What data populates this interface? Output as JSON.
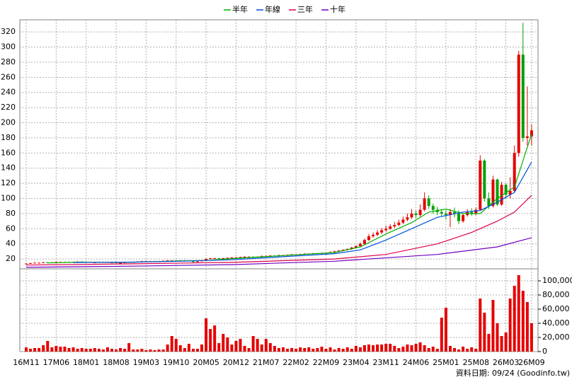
{
  "chart_data": {
    "type": "candlestick",
    "footer": "資料日期: 09/24 (Goodinfo.tw)",
    "up_color": "#e60000",
    "down_color": "#00a000",
    "grid": true,
    "categories": [
      "16M11",
      null,
      null,
      null,
      null,
      null,
      null,
      "17M06",
      null,
      null,
      null,
      null,
      null,
      null,
      "18M01",
      null,
      null,
      null,
      null,
      null,
      null,
      "18M08",
      null,
      null,
      null,
      null,
      null,
      null,
      "19M03",
      null,
      null,
      null,
      null,
      null,
      null,
      "19M10",
      null,
      null,
      null,
      null,
      null,
      null,
      "20M05",
      null,
      null,
      null,
      null,
      null,
      null,
      "20M12",
      null,
      null,
      null,
      null,
      null,
      null,
      "21M07",
      null,
      null,
      null,
      null,
      null,
      null,
      "22M02",
      null,
      null,
      null,
      null,
      null,
      null,
      "22M09",
      null,
      null,
      null,
      null,
      null,
      null,
      "23M04",
      null,
      null,
      null,
      null,
      null,
      null,
      "23M11",
      null,
      null,
      null,
      null,
      null,
      null,
      "24M06",
      null,
      null,
      null,
      null,
      null,
      null,
      "25M01",
      null,
      null,
      null,
      null,
      null,
      null,
      "25M08",
      null,
      null,
      null,
      null,
      null,
      null,
      "26M03",
      null,
      null,
      null,
      null,
      null,
      "26M09"
    ],
    "open": [
      14,
      14,
      14.5,
      15,
      15,
      15.5,
      15,
      15.5,
      16,
      16,
      15.5,
      16,
      16,
      16.5,
      16,
      16,
      15.5,
      15.5,
      16,
      16,
      15.5,
      15.5,
      15,
      15,
      15.5,
      16,
      16,
      16.5,
      17,
      17,
      17,
      16.5,
      17,
      17.5,
      18,
      18,
      17.5,
      18,
      18,
      17.5,
      16,
      17,
      18,
      20,
      21,
      21,
      20.5,
      21,
      21.5,
      22,
      22,
      22.5,
      23,
      23,
      22.5,
      23,
      24,
      24,
      24.5,
      24,
      25,
      25,
      25.5,
      26,
      26,
      26.5,
      27,
      27,
      27.5,
      27,
      28,
      28,
      29,
      30,
      31,
      32,
      33,
      35,
      37,
      40,
      45,
      50,
      52,
      55,
      58,
      60,
      63,
      65,
      68,
      72,
      75,
      80,
      78,
      85,
      100,
      90,
      85,
      82,
      80,
      78,
      82,
      80,
      70,
      78,
      82,
      80,
      85,
      150,
      100,
      90,
      125,
      92,
      118,
      105,
      110,
      160,
      290,
      180,
      182
    ],
    "high": [
      14.5,
      15,
      15.5,
      15.5,
      16,
      16,
      16,
      16.5,
      16.5,
      16.5,
      16.5,
      16.5,
      17,
      17,
      16.5,
      16.5,
      16,
      16.5,
      16.5,
      16.5,
      16,
      16,
      15.5,
      16,
      16.5,
      16.5,
      17,
      17.5,
      17.5,
      17.5,
      17.5,
      17.5,
      18,
      18.5,
      18.5,
      18.5,
      18.5,
      18.5,
      18.5,
      18,
      17.5,
      18.5,
      20.5,
      21.5,
      21.5,
      21.5,
      21.5,
      22,
      22.5,
      22.5,
      23,
      23.5,
      23.5,
      23.5,
      23.5,
      24.5,
      24.5,
      25,
      25,
      25.5,
      25.5,
      26,
      26.5,
      26.5,
      27,
      27.5,
      27.5,
      28,
      28,
      28.5,
      28.5,
      30,
      31,
      32,
      33,
      34,
      36,
      38,
      42,
      47,
      53,
      55,
      58,
      61,
      64,
      66,
      69,
      72,
      76,
      80,
      86,
      84,
      92,
      108,
      104,
      93,
      89,
      86,
      84,
      86,
      88,
      84,
      80,
      86,
      87,
      88,
      157,
      152,
      108,
      130,
      126,
      122,
      120,
      128,
      170,
      295,
      332,
      248,
      198
    ],
    "low": [
      13.5,
      13.5,
      14,
      14.5,
      14.5,
      14.5,
      14.5,
      15,
      15.5,
      15,
      15,
      15.5,
      15.5,
      15.5,
      15.5,
      15,
      15,
      15,
      15.5,
      15,
      15,
      14.5,
      14.5,
      14.5,
      15,
      15.5,
      15.5,
      16,
      16.5,
      16.5,
      16,
      16,
      16.5,
      17,
      17.5,
      17,
      17,
      17.5,
      17,
      15.5,
      15.5,
      16.5,
      17.5,
      19.5,
      20.5,
      20,
      20,
      20.5,
      21,
      21.5,
      21.5,
      22,
      22.5,
      22,
      22,
      22.5,
      23.5,
      23.5,
      23.5,
      23.5,
      24.5,
      24.5,
      25,
      25.5,
      25.5,
      26,
      26.5,
      26.5,
      26.5,
      26.5,
      27.5,
      27.5,
      28.5,
      29,
      30,
      31,
      32,
      34,
      36,
      39,
      44,
      48,
      50,
      53,
      56,
      58,
      61,
      63,
      66,
      70,
      73,
      74,
      76,
      83,
      86,
      80,
      78,
      76,
      72,
      62,
      75,
      66,
      68,
      76,
      77,
      78,
      84,
      96,
      86,
      88,
      90,
      90,
      100,
      100,
      108,
      155,
      175,
      170,
      170
    ],
    "close": [
      14,
      14.5,
      15,
      15,
      15.5,
      15,
      15.5,
      16,
      16,
      15.5,
      16,
      16,
      16.5,
      16,
      16,
      15.5,
      15.5,
      16,
      16,
      15.5,
      15.5,
      15,
      15,
      15.5,
      16,
      16,
      16.5,
      17,
      17,
      17,
      16.5,
      17,
      17.5,
      18,
      18,
      17.5,
      18,
      18,
      17.5,
      16,
      17,
      18,
      20,
      21,
      21,
      20.5,
      21,
      21.5,
      22,
      22,
      22.5,
      23,
      23,
      22.5,
      23,
      24,
      24,
      24.5,
      24,
      25,
      25,
      25.5,
      26,
      26,
      26.5,
      27,
      27,
      27.5,
      27,
      28,
      28,
      29,
      30,
      31,
      32,
      33,
      35,
      37,
      40,
      45,
      50,
      52,
      55,
      58,
      60,
      63,
      65,
      68,
      72,
      75,
      80,
      78,
      85,
      100,
      90,
      85,
      82,
      80,
      78,
      82,
      80,
      70,
      78,
      82,
      80,
      85,
      150,
      100,
      90,
      125,
      92,
      118,
      105,
      110,
      160,
      290,
      180,
      182,
      190
    ],
    "ylim": [
      7,
      336
    ],
    "yticks": [
      20,
      40,
      60,
      80,
      100,
      120,
      140,
      160,
      180,
      200,
      220,
      240,
      260,
      280,
      300,
      320
    ],
    "series": [
      {
        "name": "半年",
        "color": "#00b000",
        "x": [
          5,
          12,
          24,
          36,
          42,
          48,
          60,
          72,
          78,
          84,
          90,
          94,
          98,
          102,
          106,
          110,
          114,
          116,
          118
        ],
        "values": [
          14.8,
          15.8,
          15.5,
          17.5,
          18,
          20.5,
          24.5,
          28.5,
          36,
          53,
          68,
          82,
          86,
          80,
          80,
          100,
          115,
          150,
          185
        ]
      },
      {
        "name": "年線",
        "color": "#0050e0",
        "x": [
          11,
          24,
          36,
          48,
          60,
          72,
          78,
          84,
          90,
          96,
          102,
          106,
          110,
          114,
          118
        ],
        "values": [
          15.3,
          15.8,
          17,
          19,
          23,
          27,
          32,
          45,
          60,
          75,
          82,
          84,
          95,
          108,
          148
        ]
      },
      {
        "name": "三年",
        "color": "#e0004a",
        "x": [
          0,
          24,
          48,
          72,
          84,
          96,
          104,
          110,
          114,
          118
        ],
        "values": [
          12,
          13.5,
          15.5,
          20,
          26,
          40,
          55,
          70,
          82,
          104
        ]
      },
      {
        "name": "十年",
        "color": "#7000c0",
        "x": [
          0,
          24,
          48,
          72,
          96,
          110,
          118
        ],
        "values": [
          9,
          10.5,
          12.5,
          17,
          26,
          36,
          48
        ]
      }
    ],
    "volume": {
      "color": "#e60000",
      "ylim": [
        0,
        117000
      ],
      "yticks": [
        0,
        {
          "value": 20000,
          "label": "20,000"
        },
        {
          "value": 40000,
          "label": "40,000"
        },
        {
          "value": 60000,
          "label": "60,000"
        },
        {
          "value": 80000,
          "label": "80,000"
        },
        {
          "value": 100000,
          "label": "100,000"
        }
      ],
      "values": [
        6000,
        4000,
        5000,
        5000,
        9000,
        15000,
        6000,
        8000,
        7000,
        7000,
        5000,
        6000,
        4000,
        5000,
        4000,
        4000,
        5000,
        4000,
        3000,
        6000,
        4000,
        3000,
        5000,
        4000,
        12000,
        3000,
        3000,
        4000,
        2000,
        3000,
        2000,
        3000,
        3000,
        10000,
        22000,
        18000,
        9000,
        5000,
        11000,
        4000,
        4000,
        10000,
        47000,
        32000,
        37000,
        12000,
        25000,
        20000,
        10000,
        15000,
        18000,
        8000,
        5000,
        22000,
        18000,
        10000,
        18000,
        12000,
        8000,
        5000,
        6000,
        4000,
        5000,
        4000,
        6000,
        5000,
        6000,
        4000,
        5000,
        7000,
        4000,
        6000,
        3000,
        5000,
        4000,
        6000,
        4000,
        8000,
        6000,
        9000,
        10000,
        9000,
        10000,
        10000,
        11000,
        11000,
        8000,
        5000,
        7000,
        10000,
        9000,
        11000,
        13000,
        9000,
        5000,
        7000,
        4000,
        48000,
        62000,
        8000,
        5000,
        3000,
        7000,
        4000,
        6000,
        4000,
        75000,
        55000,
        25000,
        73000,
        40000,
        22000,
        27000,
        75000,
        93000,
        108000,
        86000,
        70000,
        40000
      ]
    }
  }
}
